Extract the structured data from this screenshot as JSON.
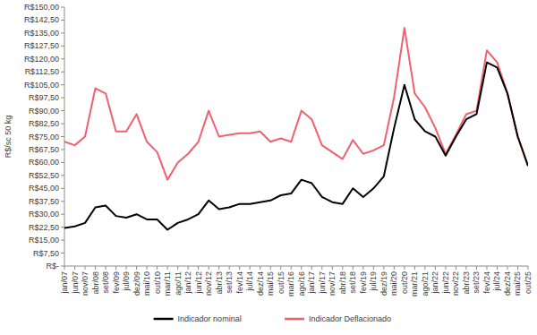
{
  "chart_data": {
    "type": "line",
    "y_label": "R$/sc 50 kg",
    "categories": [
      "jan/07",
      "jun/07",
      "nov/07",
      "abr/08",
      "set/08",
      "fev/09",
      "jul/09",
      "dez/09",
      "mai/10",
      "out/10",
      "mar/11",
      "ago/11",
      "jan/12",
      "jun/12",
      "nov/12",
      "abr/13",
      "set/13",
      "fev/14",
      "jul/14",
      "dez/14",
      "mai/15",
      "out/15",
      "mar/16",
      "ago/16",
      "jan/17",
      "jun/17",
      "nov/17",
      "abr/18",
      "set/18",
      "fev/19",
      "jul/19",
      "dez/19",
      "mai/20",
      "out/20",
      "mar/21",
      "ago/21",
      "jan/22",
      "jun/22",
      "nov/22",
      "abr/23",
      "set/23",
      "fev/24",
      "jul/24",
      "dez/24",
      "mai/25",
      "out/25"
    ],
    "series": [
      {
        "name": "Indicador nominal",
        "color": "#000000",
        "values": [
          22,
          23,
          25,
          34,
          35,
          29,
          28,
          30,
          27,
          27,
          21,
          25,
          27,
          30,
          38,
          33,
          34,
          36,
          36,
          37,
          38,
          41,
          42,
          50,
          48,
          40,
          37,
          36,
          45,
          40,
          45,
          52,
          80,
          105,
          85,
          78,
          75,
          64,
          75,
          85,
          88,
          118,
          115,
          100,
          75,
          58
        ]
      },
      {
        "name": "Indicador Deflacionado",
        "color": "#f0606e",
        "values": [
          72,
          70,
          75,
          103,
          100,
          78,
          78,
          88,
          72,
          66,
          50,
          60,
          65,
          72,
          90,
          75,
          76,
          77,
          77,
          78,
          72,
          74,
          72,
          90,
          85,
          70,
          66,
          62,
          73,
          65,
          67,
          70,
          98,
          138,
          100,
          92,
          80,
          65,
          76,
          88,
          90,
          125,
          118,
          100,
          75,
          58
        ]
      }
    ],
    "ylim": [
      0,
      150
    ],
    "yticks": [
      {
        "value": 0,
        "label": "R$-"
      },
      {
        "value": 7.5,
        "label": "R$7,50"
      },
      {
        "value": 15,
        "label": "R$15,00"
      },
      {
        "value": 22.5,
        "label": "R$22,50"
      },
      {
        "value": 30,
        "label": "R$30,00"
      },
      {
        "value": 37.5,
        "label": "R$37,50"
      },
      {
        "value": 45,
        "label": "R$45,00"
      },
      {
        "value": 52.5,
        "label": "R$52,50"
      },
      {
        "value": 60,
        "label": "R$60,00"
      },
      {
        "value": 67.5,
        "label": "R$67,50"
      },
      {
        "value": 75,
        "label": "R$75,00"
      },
      {
        "value": 82.5,
        "label": "R$82,50"
      },
      {
        "value": 90,
        "label": "R$90,00"
      },
      {
        "value": 97.5,
        "label": "R$97,50"
      },
      {
        "value": 105,
        "label": "R$105,00"
      },
      {
        "value": 112.5,
        "label": "R$112,50"
      },
      {
        "value": 120,
        "label": "R$120,00"
      },
      {
        "value": 127.5,
        "label": "R$127,50"
      },
      {
        "value": 135,
        "label": "R$135,00"
      },
      {
        "value": 142.5,
        "label": "R$142,50"
      },
      {
        "value": 150,
        "label": "R$150,00"
      }
    ],
    "grid": false,
    "legend": "bottom"
  }
}
